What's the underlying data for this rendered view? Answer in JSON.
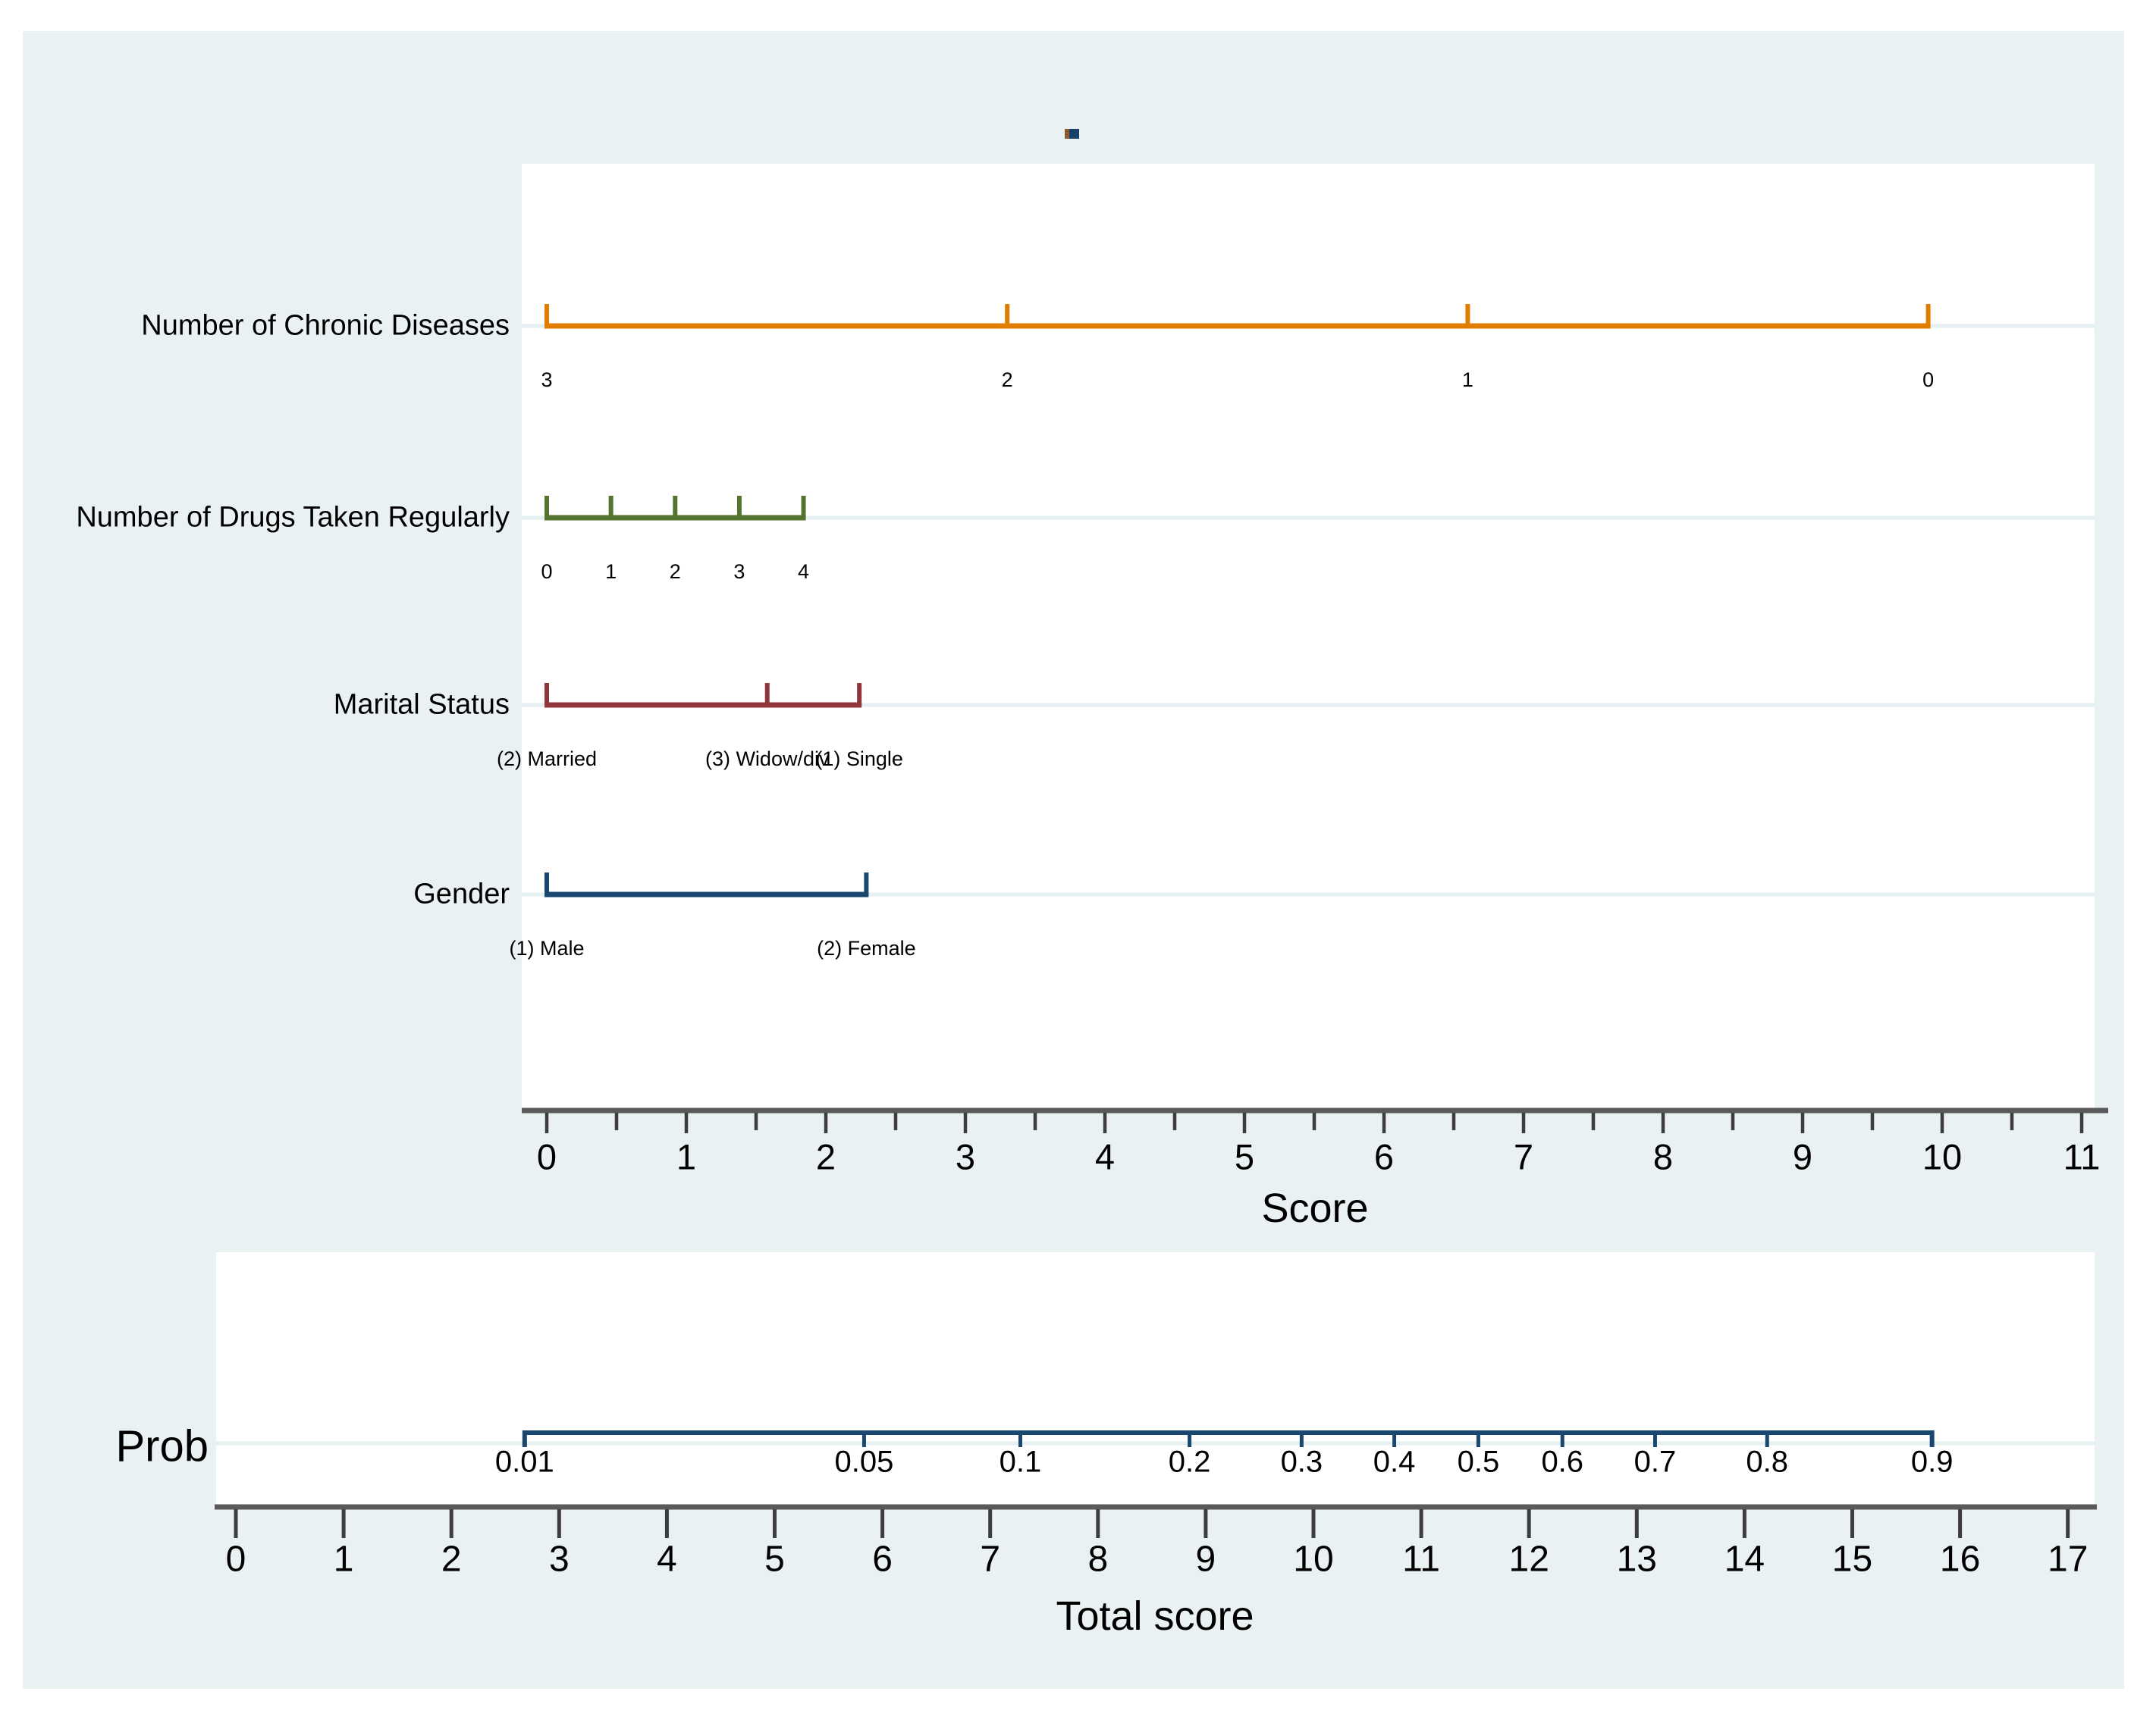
{
  "figure": {
    "background_color": "#ffffff",
    "canvas_color": "#eaf1f3",
    "panel_color": "#ffffff",
    "gridline_color": "#e6eff2",
    "axis_line_color": "#5a5a5a",
    "tick_color": "#3d3d3d",
    "text_color": "#000000",
    "sub_label_color": "#303030",
    "legend_marker_colors": [
      "#8a5a33",
      "#17406b"
    ]
  },
  "chart_data": {
    "type": "nomogram",
    "top_panel": {
      "axis": {
        "label": "Score",
        "min": 0,
        "max": 11,
        "major_step": 1,
        "minor_step": 0.5,
        "tick_labels": [
          "0",
          "1",
          "2",
          "3",
          "4",
          "5",
          "6",
          "7",
          "8",
          "9",
          "10",
          "11"
        ]
      },
      "rows": [
        {
          "name": "Number of Chronic Diseases",
          "color": "#e07c00",
          "points": [
            {
              "label": "3",
              "score": 0
            },
            {
              "label": "2",
              "score": 3.3
            },
            {
              "label": "1",
              "score": 6.6
            },
            {
              "label": "0",
              "score": 9.9
            }
          ]
        },
        {
          "name": "Number of Drugs Taken Regularly",
          "color": "#55752f",
          "points": [
            {
              "label": "0",
              "score": 0
            },
            {
              "label": "1",
              "score": 0.46
            },
            {
              "label": "2",
              "score": 0.92
            },
            {
              "label": "3",
              "score": 1.38
            },
            {
              "label": "4",
              "score": 1.84
            }
          ]
        },
        {
          "name": "Marital Status",
          "color": "#90353b",
          "points": [
            {
              "label": "(2) Married",
              "score": 0
            },
            {
              "label": "(3) Widow/div",
              "score": 1.58
            },
            {
              "label": "(1) Single",
              "score": 2.24
            }
          ]
        },
        {
          "name": "Gender",
          "color": "#1a476f",
          "points": [
            {
              "label": "(1) Male",
              "score": 0
            },
            {
              "label": "(2) Female",
              "score": 2.29
            }
          ]
        }
      ]
    },
    "bottom_panel": {
      "axis": {
        "label": "Total score",
        "min": 0,
        "max": 17,
        "major_step": 1,
        "tick_labels": [
          "0",
          "1",
          "2",
          "3",
          "4",
          "5",
          "6",
          "7",
          "8",
          "9",
          "10",
          "11",
          "12",
          "13",
          "14",
          "15",
          "16",
          "17"
        ]
      },
      "prob_line": {
        "label": "Prob",
        "color": "#1a476f",
        "points": [
          {
            "label": "0.01",
            "total_score": 2.68
          },
          {
            "label": "0.05",
            "total_score": 5.83
          },
          {
            "label": "0.1",
            "total_score": 7.28
          },
          {
            "label": "0.2",
            "total_score": 8.85
          },
          {
            "label": "0.3",
            "total_score": 9.89
          },
          {
            "label": "0.4",
            "total_score": 10.75
          },
          {
            "label": "0.5",
            "total_score": 11.53
          },
          {
            "label": "0.6",
            "total_score": 12.31
          },
          {
            "label": "0.7",
            "total_score": 13.17
          },
          {
            "label": "0.8",
            "total_score": 14.21
          },
          {
            "label": "0.9",
            "total_score": 15.74
          }
        ]
      }
    }
  }
}
